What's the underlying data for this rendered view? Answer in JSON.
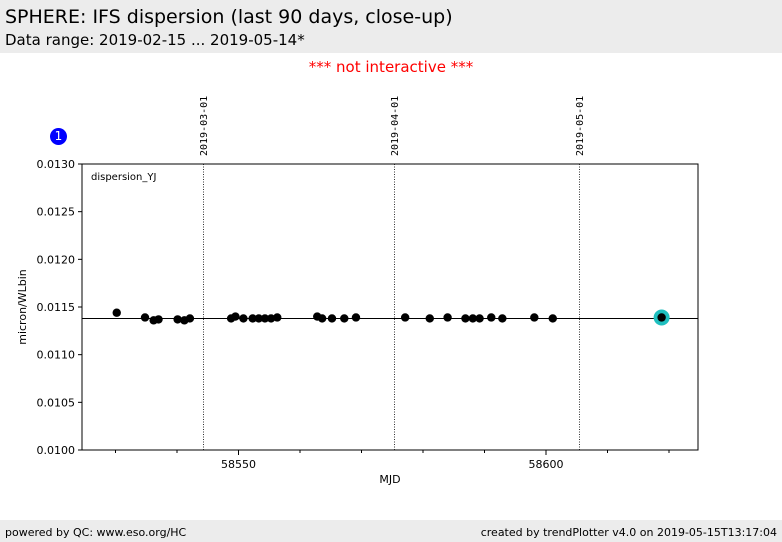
{
  "header": {
    "title": "SPHERE: IFS dispersion (last 90 days, close-up)",
    "subtitle": "Data range: 2019-02-15 ... 2019-05-14*"
  },
  "notice": "*** not interactive ***",
  "badge": "1",
  "footer": {
    "left": "powered by QC: www.eso.org/HC",
    "right": "created by trendPlotter v4.0 on 2019-05-15T13:17:04"
  },
  "colors": {
    "points": "#000000",
    "latest_marker": "#1fbfbf",
    "notice": "#ff0000",
    "badge": "#0000ff"
  },
  "chart_data": {
    "type": "scatter",
    "legend_label": "dispersion_YJ",
    "xlabel": "MJD",
    "ylabel": "micron/WLbin",
    "xlim": [
      3,
      76
    ],
    "x_offset": 58525,
    "ylim": [
      0.01,
      0.013
    ],
    "x_ticks": [
      58550,
      58600
    ],
    "y_ticks": [
      "0.0100",
      "0.0105",
      "0.0110",
      "0.0115",
      "0.0120",
      "0.0125",
      "0.0130"
    ],
    "reference_line": 0.01138,
    "date_markers": [
      {
        "x": 19.25,
        "label": "2019-03-01"
      },
      {
        "x": 50.23,
        "label": "2019-04-01"
      },
      {
        "x": 80.3,
        "label": "2019-05-01"
      }
    ],
    "series": [
      {
        "values": [
          [
            5.2,
            0.01144
          ],
          [
            9.8,
            0.01139
          ],
          [
            11.2,
            0.01136
          ],
          [
            12.0,
            0.01137
          ],
          [
            15.1,
            0.01137
          ],
          [
            16.2,
            0.01136
          ],
          [
            17.1,
            0.01138
          ],
          [
            23.8,
            0.01138
          ],
          [
            24.5,
            0.0114
          ],
          [
            25.8,
            0.01138
          ],
          [
            27.3,
            0.01138
          ],
          [
            28.3,
            0.01138
          ],
          [
            29.3,
            0.01138
          ],
          [
            30.3,
            0.01138
          ],
          [
            31.3,
            0.01139
          ],
          [
            37.8,
            0.0114
          ],
          [
            38.6,
            0.01138
          ],
          [
            40.2,
            0.01138
          ],
          [
            42.2,
            0.01138
          ],
          [
            44.1,
            0.01139
          ],
          [
            52.1,
            0.01139
          ],
          [
            56.1,
            0.01138
          ],
          [
            59.0,
            0.01139
          ],
          [
            61.9,
            0.01138
          ],
          [
            63.1,
            0.01138
          ],
          [
            64.2,
            0.01138
          ],
          [
            66.1,
            0.01139
          ],
          [
            67.9,
            0.01138
          ],
          [
            73.1,
            0.01139
          ],
          [
            76.1,
            0.01138
          ]
        ]
      }
    ],
    "latest": [
      93.8,
      0.01139
    ]
  }
}
